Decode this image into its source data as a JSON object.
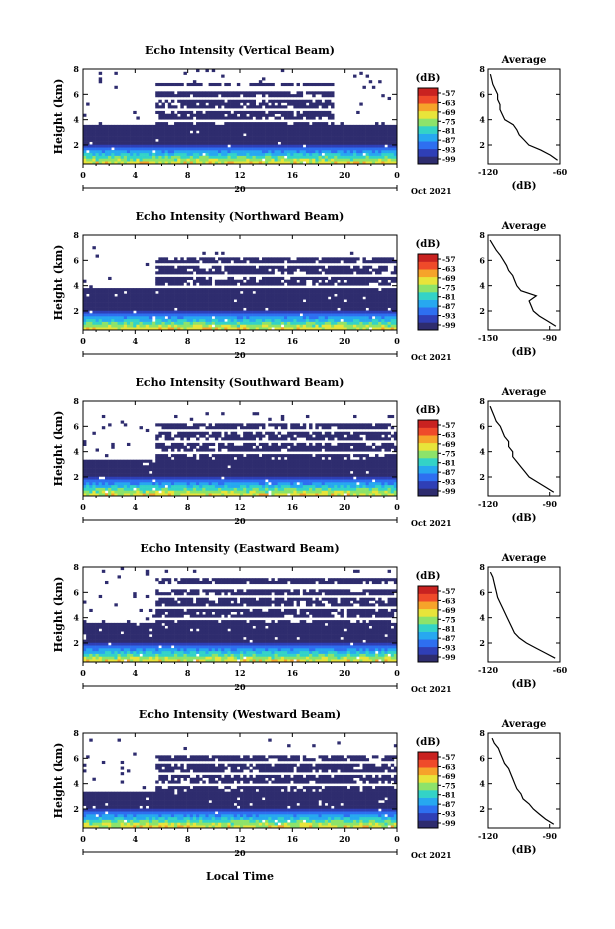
{
  "figure": {
    "xlabel": "Local Time",
    "date_label": "Oct 2021",
    "day_label": "20",
    "unit_label": "(dB)",
    "avg_xlabel": "(dB)",
    "avg_title": "Average",
    "ylabel": "Height (km)"
  },
  "colorbar": {
    "ticks": [
      "-57",
      "-63",
      "-69",
      "-75",
      "-81",
      "-87",
      "-93",
      "-99"
    ],
    "colors": [
      "#2e2c6e",
      "#2f3fb6",
      "#2e6ff0",
      "#27a8f0",
      "#33d3c7",
      "#8de36a",
      "#e8e43a",
      "#f6a32a",
      "#ef4a2a",
      "#c92220"
    ]
  },
  "chart_data": [
    {
      "type": "heatmap",
      "title": "Echo Intensity (Vertical Beam)",
      "xlabel": "",
      "ylabel": "Height (km)",
      "x_ticks": [
        "0",
        "4",
        "8",
        "12",
        "16",
        "20",
        "0"
      ],
      "y_ticks": [
        "2",
        "4",
        "6",
        "8"
      ],
      "xlim": [
        0,
        24
      ],
      "ylim": [
        0.5,
        8
      ],
      "colorbar_range_db": [
        -99,
        -57
      ],
      "clear_air_top_km": [
        3.6,
        7.0
      ],
      "active_hours": [
        0,
        19
      ],
      "average_profile": {
        "title": "Average",
        "xlabel": "(dB)",
        "x_ticks": [
          "-120",
          "-60"
        ],
        "y_ticks": [
          "2",
          "4",
          "6",
          "8"
        ],
        "xlim": [
          -120,
          -60
        ],
        "height_km": [
          0.8,
          1.2,
          1.6,
          2.0,
          2.4,
          2.8,
          3.2,
          3.6,
          4.0,
          4.4,
          4.8,
          5.2,
          5.6,
          6.0,
          6.4,
          6.8,
          7.2,
          7.6
        ],
        "db": [
          -62,
          -68,
          -76,
          -86,
          -90,
          -94,
          -96,
          -99,
          -106,
          -108,
          -110,
          -110,
          -112,
          -112,
          -114,
          -116,
          -117,
          -118
        ]
      }
    },
    {
      "type": "heatmap",
      "title": "Echo Intensity (Northward Beam)",
      "xlabel": "",
      "ylabel": "Height (km)",
      "x_ticks": [
        "0",
        "4",
        "8",
        "12",
        "16",
        "20",
        "0"
      ],
      "y_ticks": [
        "2",
        "4",
        "6",
        "8"
      ],
      "xlim": [
        0,
        24
      ],
      "ylim": [
        0.5,
        8
      ],
      "colorbar_range_db": [
        -99,
        -57
      ],
      "clear_air_top_km": [
        3.8,
        6.4
      ],
      "active_hours": [
        0,
        24
      ],
      "average_profile": {
        "title": "Average",
        "xlabel": "(dB)",
        "x_ticks": [
          "-150",
          "-90"
        ],
        "y_ticks": [
          "2",
          "4",
          "6",
          "8"
        ],
        "xlim": [
          -150,
          -80
        ],
        "height_km": [
          0.8,
          1.2,
          1.6,
          2.0,
          2.4,
          2.8,
          3.2,
          3.6,
          4.0,
          4.4,
          4.8,
          5.2,
          5.6,
          6.0,
          6.4,
          6.8,
          7.2,
          7.6
        ],
        "db": [
          -84,
          -92,
          -100,
          -106,
          -108,
          -110,
          -103,
          -118,
          -122,
          -124,
          -126,
          -130,
          -132,
          -135,
          -138,
          -142,
          -145,
          -148
        ]
      }
    },
    {
      "type": "heatmap",
      "title": "Echo Intensity (Southward Beam)",
      "xlabel": "",
      "ylabel": "Height (km)",
      "x_ticks": [
        "0",
        "4",
        "8",
        "12",
        "16",
        "20",
        "0"
      ],
      "y_ticks": [
        "2",
        "4",
        "6",
        "8"
      ],
      "xlim": [
        0,
        24
      ],
      "ylim": [
        0.5,
        8
      ],
      "colorbar_range_db": [
        -99,
        -57
      ],
      "clear_air_top_km": [
        3.4,
        6.4
      ],
      "active_hours": [
        0,
        24
      ],
      "average_profile": {
        "title": "Average",
        "xlabel": "(dB)",
        "x_ticks": [
          "-120",
          "-90"
        ],
        "y_ticks": [
          "2",
          "4",
          "6",
          "8"
        ],
        "xlim": [
          -120,
          -85
        ],
        "height_km": [
          0.8,
          1.2,
          1.6,
          2.0,
          2.4,
          2.8,
          3.2,
          3.6,
          4.0,
          4.4,
          4.8,
          5.2,
          5.6,
          6.0,
          6.4,
          6.8,
          7.2,
          7.6
        ],
        "db": [
          -88,
          -92,
          -96,
          -100,
          -102,
          -104,
          -106,
          -108,
          -108,
          -110,
          -110,
          -112,
          -113,
          -114,
          -116,
          -117,
          -118,
          -119
        ]
      }
    },
    {
      "type": "heatmap",
      "title": "Echo Intensity (Eastward Beam)",
      "xlabel": "",
      "ylabel": "Height (km)",
      "x_ticks": [
        "0",
        "4",
        "8",
        "12",
        "16",
        "20",
        "0"
      ],
      "y_ticks": [
        "2",
        "4",
        "6",
        "8"
      ],
      "xlim": [
        0,
        24
      ],
      "ylim": [
        0.5,
        8
      ],
      "colorbar_range_db": [
        -99,
        -57
      ],
      "clear_air_top_km": [
        3.6,
        7.4
      ],
      "active_hours": [
        0,
        24
      ],
      "average_profile": {
        "title": "Average",
        "xlabel": "(dB)",
        "x_ticks": [
          "-120",
          "-60"
        ],
        "y_ticks": [
          "2",
          "4",
          "6",
          "8"
        ],
        "xlim": [
          -120,
          -60
        ],
        "height_km": [
          0.8,
          1.2,
          1.6,
          2.0,
          2.4,
          2.8,
          3.2,
          3.6,
          4.0,
          4.4,
          4.8,
          5.2,
          5.6,
          6.0,
          6.4,
          6.8,
          7.2,
          7.6
        ],
        "db": [
          -64,
          -72,
          -80,
          -88,
          -94,
          -98,
          -100,
          -102,
          -104,
          -106,
          -108,
          -110,
          -112,
          -113,
          -114,
          -115,
          -116,
          -118
        ]
      }
    },
    {
      "type": "heatmap",
      "title": "Echo Intensity (Westward Beam)",
      "xlabel": "Local Time",
      "ylabel": "Height (km)",
      "x_ticks": [
        "0",
        "4",
        "8",
        "12",
        "16",
        "20",
        "0"
      ],
      "y_ticks": [
        "2",
        "4",
        "6",
        "8"
      ],
      "xlim": [
        0,
        24
      ],
      "ylim": [
        0.5,
        8
      ],
      "colorbar_range_db": [
        -99,
        -57
      ],
      "clear_air_top_km": [
        3.4,
        6.6
      ],
      "active_hours": [
        0,
        24
      ],
      "average_profile": {
        "title": "Average",
        "xlabel": "(dB)",
        "x_ticks": [
          "-120",
          "-90"
        ],
        "y_ticks": [
          "2",
          "4",
          "6",
          "8"
        ],
        "xlim": [
          -120,
          -85
        ],
        "height_km": [
          0.8,
          1.2,
          1.6,
          2.0,
          2.4,
          2.8,
          3.2,
          3.6,
          4.0,
          4.4,
          4.8,
          5.2,
          5.6,
          6.0,
          6.4,
          6.8,
          7.2,
          7.6
        ],
        "db": [
          -88,
          -92,
          -95,
          -98,
          -100,
          -103,
          -104,
          -106,
          -107,
          -108,
          -109,
          -110,
          -112,
          -113,
          -114,
          -115,
          -117,
          -118
        ]
      }
    }
  ]
}
